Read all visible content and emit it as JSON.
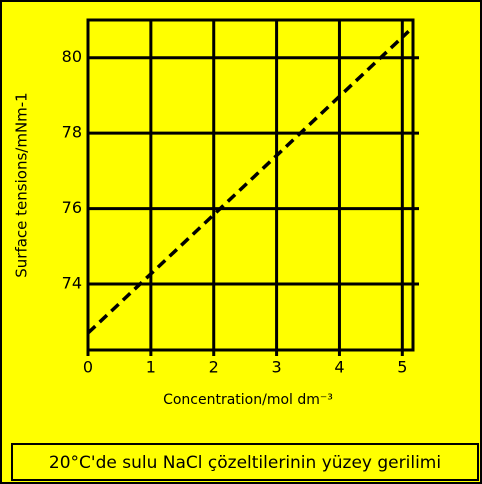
{
  "chart_data": {
    "type": "line",
    "x_label": "Concentration/mol dm⁻³",
    "y_label": "Surface tensions/mNm-1",
    "caption": "20°C'de sulu NaCl çözeltilerinin yüzey gerilimi",
    "x": [
      0,
      5.1
    ],
    "values": [
      72.7,
      80.7
    ],
    "color": "#000000",
    "dashed": true,
    "xlim": [
      0,
      5.17
    ],
    "ylim": [
      72.25,
      81
    ],
    "xticks": [
      0,
      1,
      2,
      3,
      4,
      5
    ],
    "yticks": [
      74,
      76,
      78,
      80
    ],
    "grid": true
  }
}
